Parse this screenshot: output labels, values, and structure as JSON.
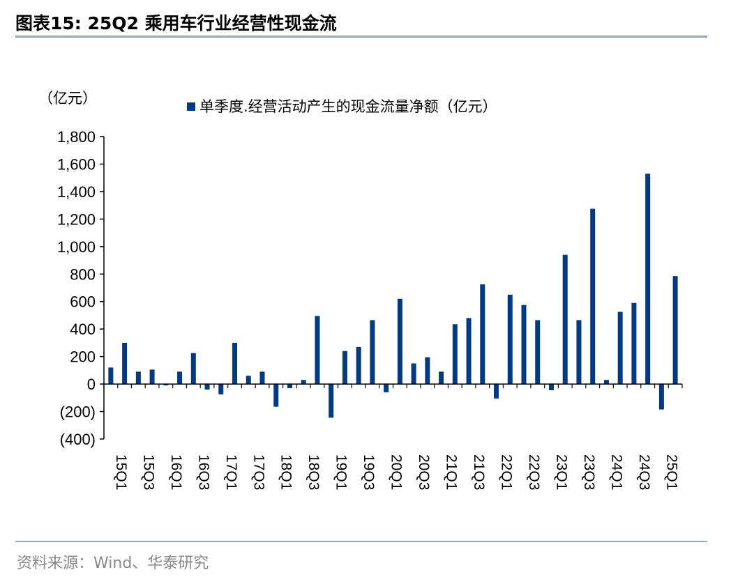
{
  "header": {
    "title": "图表15:  25Q2 乘用车行业经营性现金流"
  },
  "footer": {
    "source": "资料来源：Wind、华泰研究"
  },
  "chart_data": {
    "type": "bar",
    "unit_label": "（亿元）",
    "legend": {
      "entries": [
        "单季度.经营活动产生的现金流量净额（亿元）"
      ],
      "position": "top"
    },
    "ylim": [
      -400,
      1800
    ],
    "yticks": [
      1800,
      1600,
      1400,
      1200,
      1000,
      800,
      600,
      400,
      200,
      0,
      -200,
      -400
    ],
    "ytick_labels": [
      "1,800",
      "1,600",
      "1,400",
      "1,200",
      "1,000",
      "800",
      "600",
      "400",
      "200",
      "0",
      "(200)",
      "(400)"
    ],
    "xtick_labels": [
      "15Q1",
      "15Q3",
      "16Q1",
      "16Q3",
      "17Q1",
      "17Q3",
      "18Q1",
      "18Q3",
      "19Q1",
      "19Q3",
      "20Q1",
      "20Q3",
      "21Q1",
      "21Q3",
      "22Q1",
      "22Q3",
      "23Q1",
      "23Q3",
      "24Q1",
      "24Q3",
      "25Q1"
    ],
    "categories": [
      "15Q1",
      "15Q2",
      "15Q3",
      "15Q4",
      "16Q1",
      "16Q2",
      "16Q3",
      "16Q4",
      "17Q1",
      "17Q2",
      "17Q3",
      "17Q4",
      "18Q1",
      "18Q2",
      "18Q3",
      "18Q4",
      "19Q1",
      "19Q2",
      "19Q3",
      "19Q4",
      "20Q1",
      "20Q2",
      "20Q3",
      "20Q4",
      "21Q1",
      "21Q2",
      "21Q3",
      "21Q4",
      "22Q1",
      "22Q2",
      "22Q3",
      "22Q4",
      "23Q1",
      "23Q2",
      "23Q3",
      "23Q4",
      "24Q1",
      "24Q2",
      "24Q3",
      "24Q4",
      "25Q1",
      "25Q2"
    ],
    "series": [
      {
        "name": "单季度.经营活动产生的现金流量净额（亿元）",
        "color": "#003a80",
        "values": [
          120,
          300,
          90,
          105,
          -10,
          90,
          225,
          -40,
          -75,
          300,
          60,
          90,
          -165,
          -30,
          30,
          495,
          -245,
          240,
          270,
          465,
          -60,
          620,
          150,
          195,
          90,
          435,
          480,
          725,
          -105,
          650,
          575,
          465,
          -45,
          940,
          465,
          1275,
          30,
          525,
          590,
          1530,
          -185,
          785
        ]
      }
    ],
    "grid": false
  }
}
